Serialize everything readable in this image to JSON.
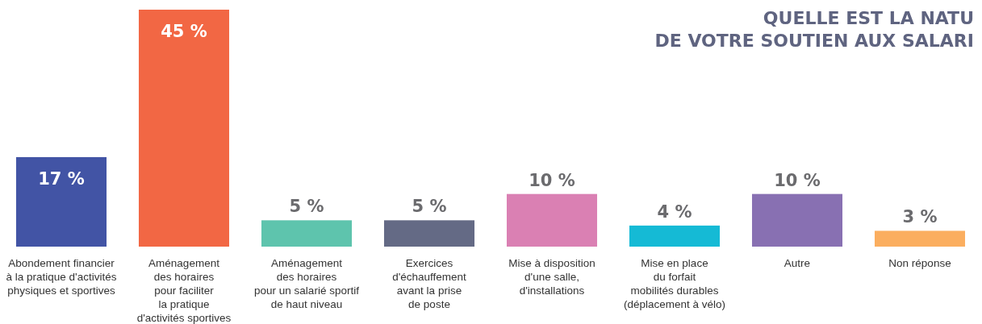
{
  "chart_data": {
    "type": "bar",
    "title": "QUELLE EST LA NATU\nDE VOTRE SOUTIEN AUX SALARI",
    "categories": [
      "Abondement financier\nà la pratique d'activités\nphysiques et sportives",
      "Aménagement\ndes horaires\npour faciliter\nla pratique\nd'activités sportives",
      "Aménagement\ndes horaires\npour un salarié sportif\nde haut niveau",
      "Exercices\nd'échauffement\navant la prise\nde poste",
      "Mise à disposition\nd'une salle,\nd'installations",
      "Mise en place\ndu forfait\nmobilités durables\n(déplacement à vélo)",
      "Autre",
      "Non réponse"
    ],
    "values": [
      17,
      45,
      5,
      5,
      10,
      4,
      10,
      3
    ],
    "value_labels": [
      "17 %",
      "45 %",
      "5 %",
      "5 %",
      "10 %",
      "4 %",
      "10 %",
      "3 %"
    ],
    "colors": [
      "#4254a5",
      "#f26744",
      "#5ec4ad",
      "#646a85",
      "#da80b3",
      "#15bad5",
      "#8870b2",
      "#fbae5f"
    ],
    "tick_labels": "x"
  }
}
